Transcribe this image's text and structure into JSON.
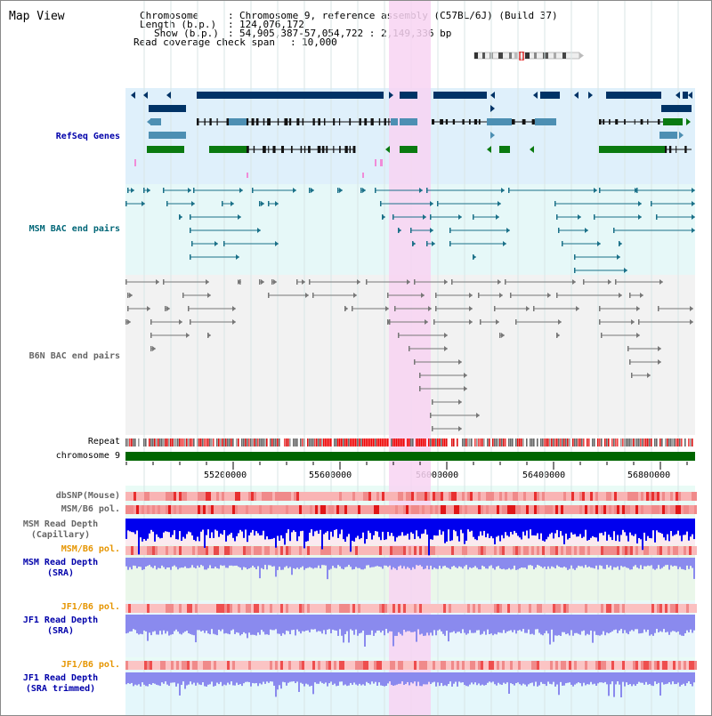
{
  "title": "Map View",
  "info": {
    "chromosome_key": "Chromosome",
    "chromosome_val": "Chromosome 9, reference assembly (C57BL/6J) (Build 37)",
    "length_key": "Length (b.p.)",
    "length_val": "124,076,172",
    "show_key": "Show (b.p.)",
    "show_val": "54,905,387-57,054,722 : 2,149,336 bp",
    "coverage_key": "Read coverage check span",
    "coverage_val": "10,000"
  },
  "tracks": {
    "refseq": "RefSeq Genes",
    "msm_bac": "MSM BAC end pairs",
    "b6n_bac": "B6N BAC end pairs",
    "repeat": "Repeat",
    "chromosome": "chromosome 9",
    "dbsnp": "dbSNP(Mouse)",
    "msm_b6_pol_1": "MSM/B6 pol.",
    "msm_depth_cap_1": "MSM Read Depth",
    "msm_depth_cap_2": "(Capillary)",
    "msm_b6_pol_2": "MSM/B6 pol.",
    "msm_depth_sra_1": "MSM Read Depth",
    "msm_depth_sra_2": "(SRA)",
    "jf1_b6_pol_1": "JF1/B6 pol.",
    "jf1_depth_sra_1": "JF1 Read Depth",
    "jf1_depth_sra_2": "(SRA)",
    "jf1_b6_pol_2": "JF1/B6 pol.",
    "jf1_depth_trim_1": "JF1 Read Depth",
    "jf1_depth_trim_2": "(SRA trimmed)"
  },
  "axis_ticks": [
    "55200000",
    "55600000",
    "56000000",
    "56400000",
    "56800000"
  ],
  "colors": {
    "refseq_bg": "#dff0fb",
    "msm_bg": "#e6f8f8",
    "b6n_bg": "#f2f2f2",
    "highlight": "#f8d4f2",
    "dark_navy": "#003366",
    "steel": "#4d8fb3",
    "green": "#0a7a10",
    "chromosome_green": "#006600",
    "depth_blue": "#0000ee",
    "depth_light": "#8a8aee"
  }
}
